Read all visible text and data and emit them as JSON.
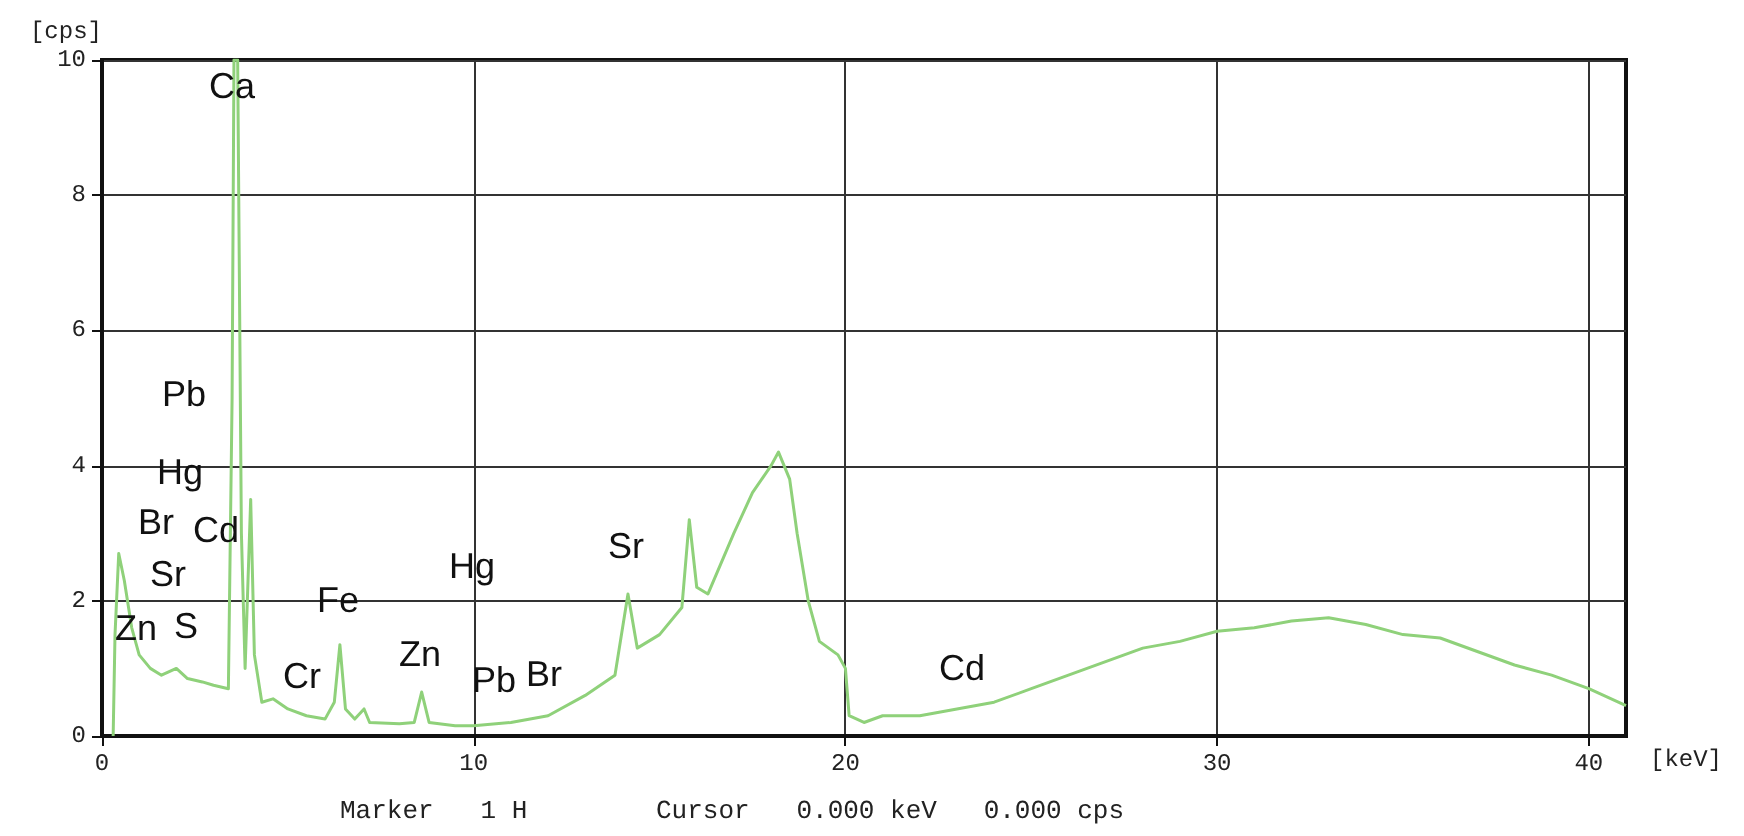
{
  "chart_data": {
    "type": "line",
    "xlabel": "[keV]",
    "ylabel": "[cps]",
    "x": [
      0.3,
      0.35,
      0.45,
      0.6,
      0.8,
      1.0,
      1.3,
      1.6,
      2.0,
      2.3,
      2.7,
      3.0,
      3.4,
      3.5,
      3.55,
      3.65,
      3.75,
      3.85,
      4.0,
      4.1,
      4.3,
      4.6,
      5.0,
      5.5,
      6.0,
      6.25,
      6.4,
      6.55,
      6.8,
      7.05,
      7.2,
      8.0,
      8.4,
      8.6,
      8.8,
      9.5,
      10,
      11,
      12,
      13,
      13.8,
      14.15,
      14.4,
      15,
      15.6,
      15.8,
      16.0,
      16.3,
      17,
      17.5,
      18,
      18.2,
      18.5,
      18.7,
      19,
      19.3,
      19.8,
      20,
      20.1,
      20.5,
      21,
      22,
      23,
      24,
      25,
      26,
      27,
      28,
      29,
      30,
      31,
      32,
      33,
      34,
      35,
      36,
      37,
      38,
      39,
      40,
      41
    ],
    "series": [
      {
        "color": "#8fd17a",
        "values": [
          0,
          1.5,
          2.7,
          2.3,
          1.6,
          1.2,
          1.0,
          0.9,
          1.0,
          0.85,
          0.8,
          0.75,
          0.7,
          5,
          10,
          10,
          3,
          1.0,
          3.5,
          1.2,
          0.5,
          0.55,
          0.4,
          0.3,
          0.25,
          0.5,
          1.35,
          0.4,
          0.25,
          0.4,
          0.2,
          0.18,
          0.2,
          0.65,
          0.2,
          0.15,
          0.15,
          0.2,
          0.3,
          0.6,
          0.9,
          2.1,
          1.3,
          1.5,
          1.9,
          3.2,
          2.2,
          2.1,
          3.0,
          3.6,
          4.0,
          4.2,
          3.8,
          3.0,
          2.0,
          1.4,
          1.2,
          1.0,
          0.3,
          0.2,
          0.3,
          0.3,
          0.4,
          0.5,
          0.7,
          0.9,
          1.1,
          1.3,
          1.4,
          1.55,
          1.6,
          1.7,
          1.75,
          1.65,
          1.5,
          1.45,
          1.25,
          1.05,
          0.9,
          0.7,
          0.45
        ]
      }
    ],
    "xlim": [
      0,
      41
    ],
    "xticks": [
      0,
      10,
      20,
      30,
      40
    ],
    "ylim": [
      0,
      10
    ],
    "yticks": [
      0,
      2,
      4,
      6,
      8,
      10
    ],
    "grid": true,
    "marker": "none",
    "line_style": "solid",
    "annotations": [
      "Ca",
      "Pb",
      "Hg",
      "Br",
      "Cd",
      "Sr",
      "Zn",
      "S",
      "Fe",
      "Cr",
      "Zn",
      "Hg",
      "Pb",
      "Br",
      "Sr",
      "Cd",
      "Marker   1 H",
      "Cursor   0.000 keV   0.000 cps"
    ]
  }
}
